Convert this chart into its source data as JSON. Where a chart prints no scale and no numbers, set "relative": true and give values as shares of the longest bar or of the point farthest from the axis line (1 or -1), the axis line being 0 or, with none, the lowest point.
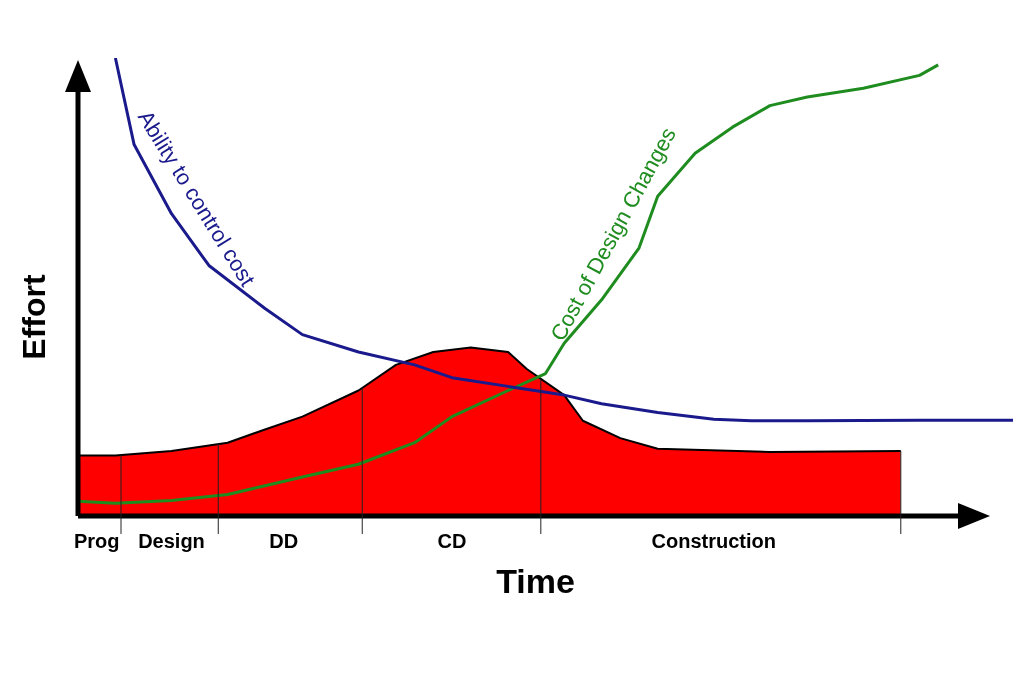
{
  "chart_data": {
    "type": "line",
    "relative": true,
    "tick_labels": "x",
    "xlabel": "Time",
    "ylabel": "Effort",
    "legend": false,
    "categories": [
      null,
      "Prog",
      null,
      null,
      null,
      "Design",
      null,
      null,
      null,
      null,
      null,
      "DD",
      null,
      null,
      null,
      null,
      null,
      null,
      null,
      null,
      "CD",
      null,
      null,
      null,
      null,
      null,
      null,
      null,
      null,
      null,
      null,
      null,
      null,
      null,
      "Construction",
      null,
      null,
      null,
      null,
      null,
      null,
      null,
      null,
      null,
      null,
      null,
      null,
      null,
      null,
      null,
      null
    ],
    "series": [
      {
        "type": "area",
        "color": "#ff0000",
        "values": [
          0.132,
          null,
          0.132,
          null,
          null,
          0.142,
          null,
          null,
          0.16,
          null,
          0.189,
          null,
          0.217,
          null,
          null,
          0.274,
          null,
          0.33,
          null,
          0.358,
          null,
          0.368,
          null,
          0.358,
          0.321,
          null,
          0.264,
          0.208,
          null,
          0.17,
          null,
          0.147,
          null,
          null,
          null,
          null,
          null,
          0.14,
          null,
          null,
          null,
          null,
          null,
          null,
          0.142,
          null,
          null,
          null,
          null,
          null,
          null
        ]
      },
      {
        "name": "Ability to control cost",
        "color": "#1a1a8c",
        "values": [
          null,
          null,
          1.0,
          0.811,
          null,
          0.66,
          null,
          0.547,
          null,
          null,
          0.453,
          null,
          0.396,
          null,
          null,
          0.358,
          null,
          null,
          0.33,
          null,
          0.302,
          null,
          null,
          0.283,
          null,
          null,
          0.264,
          null,
          0.245,
          null,
          null,
          0.226,
          null,
          null,
          0.211,
          null,
          0.208,
          null,
          null,
          0.208,
          null,
          null,
          null,
          null,
          null,
          0.209,
          null,
          null,
          null,
          null,
          0.209
        ]
      },
      {
        "name": "Cost of Design Changes",
        "color": "#1e8c1e",
        "values": [
          0.032,
          null,
          0.028,
          null,
          null,
          0.034,
          null,
          null,
          0.047,
          null,
          0.066,
          null,
          0.085,
          null,
          null,
          0.113,
          null,
          null,
          0.16,
          null,
          0.217,
          null,
          null,
          0.274,
          null,
          0.311,
          0.377,
          null,
          0.472,
          null,
          0.585,
          0.698,
          null,
          0.792,
          null,
          0.849,
          null,
          0.896,
          null,
          0.915,
          null,
          null,
          0.934,
          null,
          null,
          0.962,
          0.985,
          null,
          null,
          null,
          null
        ]
      }
    ]
  }
}
